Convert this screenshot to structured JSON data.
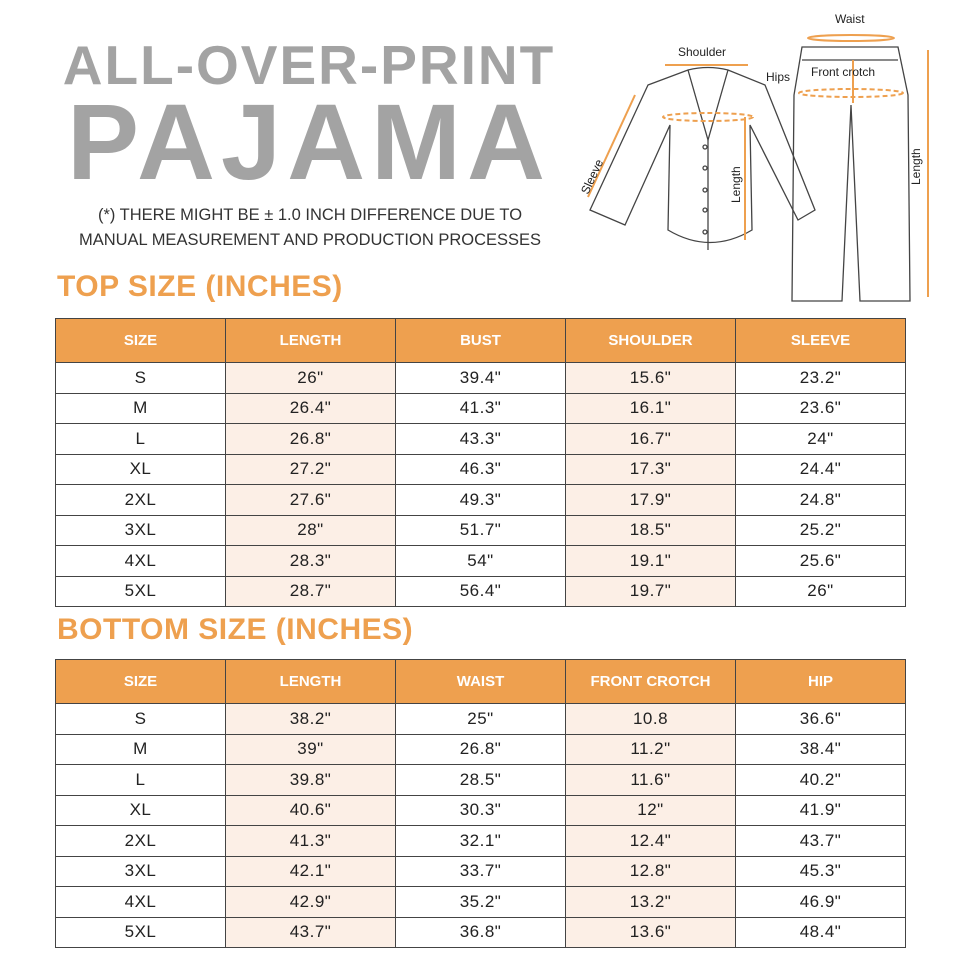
{
  "header": {
    "title_line1": "ALL-OVER-PRINT",
    "title_line2": "PAJAMA",
    "note_line1": "(*) THERE MIGHT BE ± 1.0 INCH DIFFERENCE DUE TO",
    "note_line2": "MANUAL MEASUREMENT AND PRODUCTION PROCESSES"
  },
  "diagram": {
    "labels": {
      "waist": "Waist",
      "shoulder": "Shoulder",
      "hips": "Hips",
      "front_crotch": "Front crotch",
      "sleeve": "Sleeve",
      "top_length": "Length",
      "bottom_length": "Length"
    }
  },
  "colors": {
    "accent": "#eea04f",
    "title_gray": "#a3a3a3",
    "shade": "#fcefe6"
  },
  "top": {
    "title": "TOP SIZE (INCHES)",
    "columns": [
      "SIZE",
      "LENGTH",
      "BUST",
      "SHOULDER",
      "SLEEVE"
    ],
    "rows": [
      [
        "S",
        "26\"",
        "39.4\"",
        "15.6\"",
        "23.2\""
      ],
      [
        "M",
        "26.4\"",
        "41.3\"",
        "16.1\"",
        "23.6\""
      ],
      [
        "L",
        "26.8\"",
        "43.3\"",
        "16.7\"",
        "24\""
      ],
      [
        "XL",
        "27.2\"",
        "46.3\"",
        "17.3\"",
        "24.4\""
      ],
      [
        "2XL",
        "27.6\"",
        "49.3\"",
        "17.9\"",
        "24.8\""
      ],
      [
        "3XL",
        "28\"",
        "51.7\"",
        "18.5\"",
        "25.2\""
      ],
      [
        "4XL",
        "28.3\"",
        "54\"",
        "19.1\"",
        "25.6\""
      ],
      [
        "5XL",
        "28.7\"",
        "56.4\"",
        "19.7\"",
        "26\""
      ]
    ]
  },
  "bottom": {
    "title": "BOTTOM SIZE (INCHES)",
    "columns": [
      "SIZE",
      "LENGTH",
      "WAIST",
      "FRONT CROTCH",
      "HIP"
    ],
    "rows": [
      [
        "S",
        "38.2\"",
        "25\"",
        "10.8",
        "36.6\""
      ],
      [
        "M",
        "39\"",
        "26.8\"",
        "11.2\"",
        "38.4\""
      ],
      [
        "L",
        "39.8\"",
        "28.5\"",
        "11.6\"",
        "40.2\""
      ],
      [
        "XL",
        "40.6\"",
        "30.3\"",
        "12\"",
        "41.9\""
      ],
      [
        "2XL",
        "41.3\"",
        "32.1\"",
        "12.4\"",
        "43.7\""
      ],
      [
        "3XL",
        "42.1\"",
        "33.7\"",
        "12.8\"",
        "45.3\""
      ],
      [
        "4XL",
        "42.9\"",
        "35.2\"",
        "13.2\"",
        "46.9\""
      ],
      [
        "5XL",
        "43.7\"",
        "36.8\"",
        "13.6\"",
        "48.4\""
      ]
    ]
  }
}
